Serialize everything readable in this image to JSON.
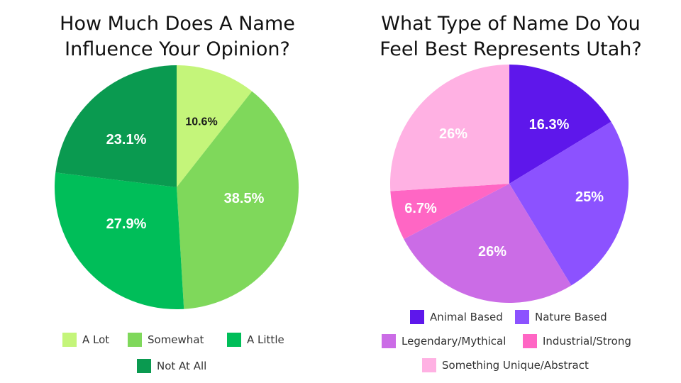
{
  "chart_data": [
    {
      "type": "pie",
      "title_lines": [
        "How Much Does A Name",
        "Influence Your Opinion?"
      ],
      "slices": [
        {
          "label": "A Lot",
          "value": 10.6,
          "value_label": "10.6%",
          "color": "#c4f57a",
          "label_color": "#1a1a1a"
        },
        {
          "label": "Somewhat",
          "value": 38.5,
          "value_label": "38.5%",
          "color": "#7fd85b",
          "label_color": "#ffffff"
        },
        {
          "label": "A Little",
          "value": 27.9,
          "value_label": "27.9%",
          "color": "#00be59",
          "label_color": "#ffffff"
        },
        {
          "label": "Not At All",
          "value": 23.1,
          "value_label": "23.1%",
          "color": "#0a9a50",
          "label_color": "#ffffff"
        }
      ]
    },
    {
      "type": "pie",
      "title_lines": [
        "What Type of Name Do You",
        "Feel Best Represents Utah?"
      ],
      "slices": [
        {
          "label": "Animal Based",
          "value": 16.3,
          "value_label": "16.3%",
          "color": "#5e17eb",
          "label_color": "#ffffff"
        },
        {
          "label": "Nature Based",
          "value": 25,
          "value_label": "25%",
          "color": "#8c52ff",
          "label_color": "#ffffff"
        },
        {
          "label": "Legendary/Mythical",
          "value": 26,
          "value_label": "26%",
          "color": "#cb6ce6",
          "label_color": "#ffffff"
        },
        {
          "label": "Industrial/Strong",
          "value": 6.7,
          "value_label": "6.7%",
          "color": "#ff66c4",
          "label_color": "#ffffff"
        },
        {
          "label": "Something Unique/Abstract",
          "value": 26,
          "value_label": "26%",
          "color": "#ffb1e3",
          "label_color": "#ffffff"
        }
      ]
    }
  ]
}
